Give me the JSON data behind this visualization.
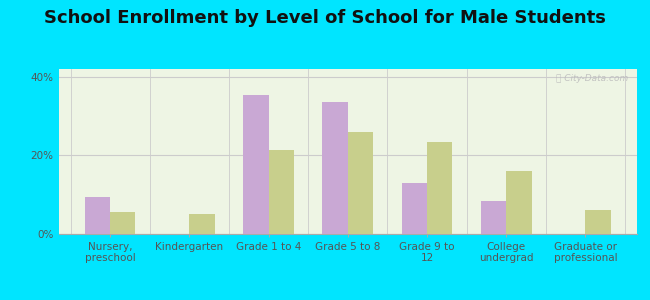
{
  "title": "School Enrollment by Level of School for Male Students",
  "categories": [
    "Nursery,\npreschool",
    "Kindergarten",
    "Grade 1 to 4",
    "Grade 5 to 8",
    "Grade 9 to\n12",
    "College\nundergrad",
    "Graduate or\nprofessional"
  ],
  "tucumcari": [
    9.5,
    0,
    35.5,
    33.5,
    13.0,
    8.5,
    0
  ],
  "new_mexico": [
    5.5,
    5.0,
    21.5,
    26.0,
    23.5,
    16.0,
    6.0
  ],
  "tucumcari_color": "#c9a8d4",
  "new_mexico_color": "#c8cf8c",
  "background_color": "#00e5ff",
  "ylim": [
    0,
    42
  ],
  "yticks": [
    0,
    20,
    40
  ],
  "ytick_labels": [
    "0%",
    "20%",
    "40%"
  ],
  "bar_width": 0.32,
  "title_fontsize": 13,
  "tick_fontsize": 7.5,
  "legend_fontsize": 9
}
